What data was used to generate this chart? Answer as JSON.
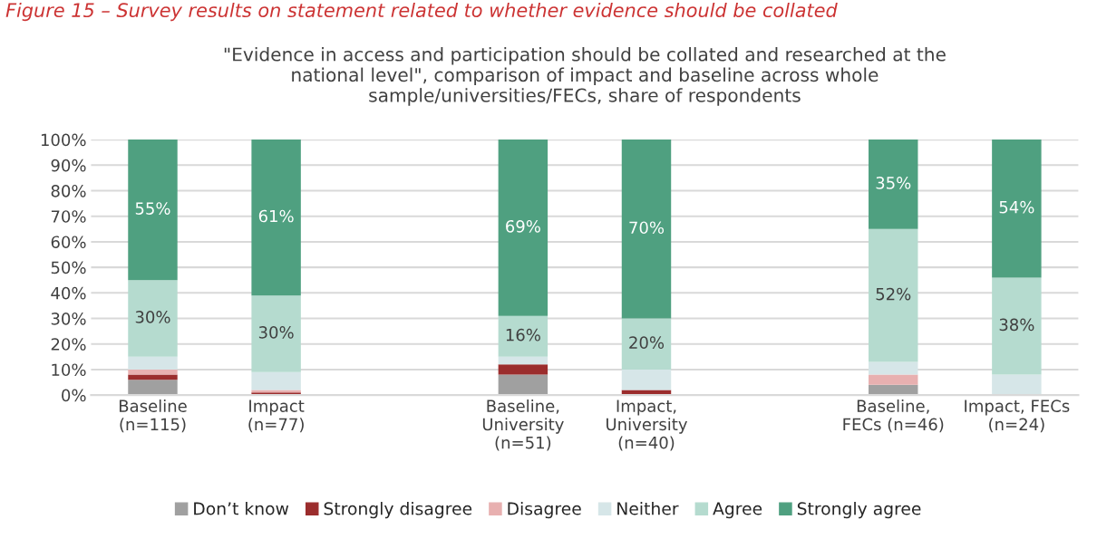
{
  "chart_data": {
    "type": "bar",
    "stacked": true,
    "title": "\"Evidence in access and participation should be collated and researched at the\nnational level\", comparison of impact and baseline across whole\nsample/universities/FECs, share of respondents",
    "annotations": [
      "Figure 15 – Survey results on statement related to whether evidence should be collated"
    ],
    "categories": [
      "Baseline\n(n=115)",
      "Impact\n(n=77)",
      null,
      "Baseline,\nUniversity\n(n=51)",
      "Impact,\nUniversity\n(n=40)",
      null,
      "Baseline,\nFECs (n=46)",
      "Impact, FECs\n(n=24)"
    ],
    "series": [
      {
        "name": "Don’t know",
        "color": "#a0a0a0",
        "values": [
          6,
          0,
          null,
          8,
          0,
          null,
          4,
          0
        ]
      },
      {
        "name": "Strongly disagree",
        "color": "#9b2d2d",
        "values": [
          2,
          1,
          null,
          4,
          2,
          null,
          0,
          0
        ]
      },
      {
        "name": "Disagree",
        "color": "#e8b0b0",
        "values": [
          2,
          1,
          null,
          0,
          0,
          null,
          4,
          0
        ]
      },
      {
        "name": "Neither",
        "color": "#d6e6e8",
        "values": [
          5,
          7,
          null,
          3,
          8,
          null,
          5,
          8
        ]
      },
      {
        "name": "Agree",
        "color": "#b5dbcf",
        "values": [
          30,
          30,
          null,
          16,
          20,
          null,
          52,
          38
        ],
        "value_labels": [
          "30%",
          "30%",
          null,
          "16%",
          "20%",
          null,
          "52%",
          "38%"
        ]
      },
      {
        "name": "Strongly agree",
        "color": "#4fa080",
        "values": [
          55,
          61,
          null,
          69,
          70,
          null,
          35,
          54
        ],
        "value_labels": [
          "55%",
          "61%",
          null,
          "69%",
          "70%",
          null,
          "35%",
          "54%"
        ]
      }
    ],
    "ylim": [
      0,
      100
    ],
    "yticks": [
      {
        "value": 0,
        "label": "0%"
      },
      {
        "value": 10,
        "label": "10%"
      },
      {
        "value": 20,
        "label": "20%"
      },
      {
        "value": 30,
        "label": "30%"
      },
      {
        "value": 40,
        "label": "40%"
      },
      {
        "value": 50,
        "label": "50%"
      },
      {
        "value": 60,
        "label": "60%"
      },
      {
        "value": 70,
        "label": "70%"
      },
      {
        "value": 80,
        "label": "80%"
      },
      {
        "value": 90,
        "label": "90%"
      },
      {
        "value": 100,
        "label": "100%"
      }
    ],
    "grid": "y",
    "legend": "bottom"
  }
}
